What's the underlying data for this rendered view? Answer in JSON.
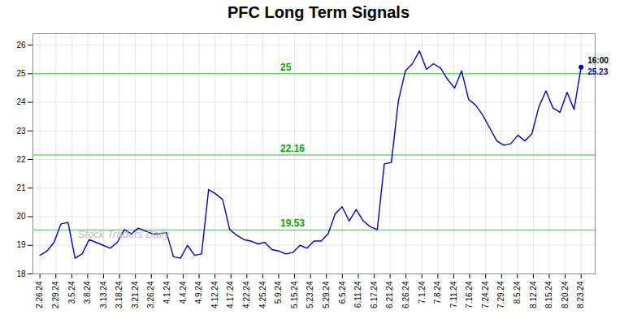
{
  "chart_data": {
    "type": "line",
    "title": "PFC Long Term Signals",
    "color": "#0000cc",
    "marker": "last_point",
    "grid": true,
    "x": [
      0,
      1,
      2,
      3,
      4,
      5,
      6,
      7,
      8,
      9,
      10,
      11,
      12,
      13,
      14,
      15,
      16,
      17,
      18,
      19,
      20,
      21,
      22,
      23,
      24,
      25,
      26,
      27,
      28,
      29,
      30,
      31,
      32,
      33,
      34,
      35,
      36,
      37,
      38,
      39,
      40,
      41,
      42,
      43,
      44,
      45,
      46,
      47,
      48,
      49,
      50,
      51,
      52,
      53,
      54,
      55,
      56,
      57,
      58,
      59,
      60,
      61,
      62,
      63,
      64,
      65,
      66,
      67,
      68,
      69,
      70,
      71,
      72,
      73,
      74,
      75,
      76,
      77
    ],
    "values": [
      18.65,
      18.8,
      19.1,
      19.75,
      19.8,
      18.55,
      18.7,
      19.2,
      19.1,
      19.0,
      18.9,
      19.1,
      19.55,
      19.4,
      19.6,
      19.5,
      19.4,
      19.4,
      19.45,
      18.6,
      18.55,
      19.0,
      18.65,
      18.7,
      20.95,
      20.8,
      20.6,
      19.55,
      19.35,
      19.2,
      19.15,
      19.05,
      19.1,
      18.85,
      18.8,
      18.7,
      18.75,
      19.0,
      18.9,
      19.15,
      19.15,
      19.4,
      20.1,
      20.35,
      19.85,
      20.25,
      19.85,
      19.65,
      19.55,
      21.85,
      21.9,
      24.05,
      25.1,
      25.35,
      25.8,
      25.15,
      25.35,
      25.2,
      24.8,
      24.5,
      25.1,
      24.1,
      23.9,
      23.55,
      23.1,
      22.65,
      22.5,
      22.55,
      22.85,
      22.65,
      22.9,
      23.85,
      24.4,
      23.8,
      23.65,
      24.35,
      23.75,
      25.23
    ],
    "xlim": [
      -1,
      79
    ],
    "xticks": [
      {
        "value": 0,
        "label": "2.26.24"
      },
      {
        "value": 2.2647,
        "label": "2.29.24"
      },
      {
        "value": 4.5294,
        "label": "3.5.24"
      },
      {
        "value": 6.7941,
        "label": "3.8.24"
      },
      {
        "value": 9.0588,
        "label": "3.13.24"
      },
      {
        "value": 11.3235,
        "label": "3.18.24"
      },
      {
        "value": 13.5882,
        "label": "3.21.24"
      },
      {
        "value": 15.8529,
        "label": "3.26.24"
      },
      {
        "value": 18.1176,
        "label": "4.1.24"
      },
      {
        "value": 20.3824,
        "label": "4.4.24"
      },
      {
        "value": 22.6471,
        "label": "4.9.24"
      },
      {
        "value": 24.9118,
        "label": "4.12.24"
      },
      {
        "value": 27.1765,
        "label": "4.17.24"
      },
      {
        "value": 29.4412,
        "label": "4.22.24"
      },
      {
        "value": 31.7059,
        "label": "4.25.24"
      },
      {
        "value": 33.9706,
        "label": "5.9.24"
      },
      {
        "value": 36.2353,
        "label": "5.15.24"
      },
      {
        "value": 38.5,
        "label": "5.23.24"
      },
      {
        "value": 40.7647,
        "label": "5.29.24"
      },
      {
        "value": 43.0294,
        "label": "6.5.24"
      },
      {
        "value": 45.2941,
        "label": "6.11.24"
      },
      {
        "value": 47.5588,
        "label": "6.17.24"
      },
      {
        "value": 49.8235,
        "label": "6.21.24"
      },
      {
        "value": 52.0882,
        "label": "6.26.24"
      },
      {
        "value": 54.3529,
        "label": "7.1.24"
      },
      {
        "value": 56.6176,
        "label": "7.8.24"
      },
      {
        "value": 58.8824,
        "label": "7.11.24"
      },
      {
        "value": 61.1471,
        "label": "7.16.24"
      },
      {
        "value": 63.4118,
        "label": "7.24.24"
      },
      {
        "value": 65.6765,
        "label": "7.29.24"
      },
      {
        "value": 67.9412,
        "label": "8.5.24"
      },
      {
        "value": 70.2059,
        "label": "8.12.24"
      },
      {
        "value": 72.4706,
        "label": "8.15.24"
      },
      {
        "value": 74.7353,
        "label": "8.20.24"
      },
      {
        "value": 77,
        "label": "8.23.24"
      }
    ],
    "ylim": [
      18,
      26.4
    ],
    "yticks": [
      18,
      19,
      20,
      21,
      22,
      23,
      24,
      25,
      26
    ],
    "reference_lines": [
      {
        "value": 19.53,
        "label": "19.53",
        "color": "#66dd66"
      },
      {
        "value": 22.16,
        "label": "22.16",
        "color": "#66dd66"
      },
      {
        "value": 25.0,
        "label": "25",
        "color": "#66dd66"
      }
    ],
    "annotations": [
      {
        "text": "16:00",
        "x": 77,
        "y": 25.23,
        "color": "#000000"
      },
      {
        "text": "25.23",
        "x": 77,
        "y": 25.23,
        "color": "#0000cc"
      },
      {
        "text": "Stock Traders Daily"
      }
    ]
  }
}
